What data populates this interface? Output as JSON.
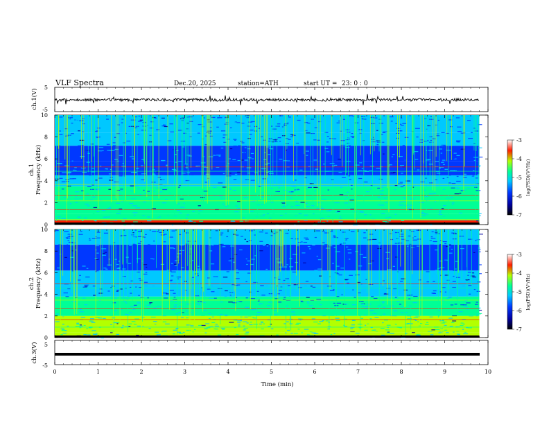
{
  "chart_data": {
    "type": "heatmap",
    "title": "VLF  Spectra",
    "header": {
      "date": "Dec.20, 2025",
      "station": "station=ATH",
      "start_label": "start  UT  =",
      "start_time": "23: 0  : 0"
    },
    "xlabel": "Time  (min)",
    "xlim": [
      0,
      10
    ],
    "x_ticks": [
      "0",
      "1",
      "2",
      "3",
      "4",
      "5",
      "6",
      "7",
      "8",
      "9",
      "10"
    ],
    "panels": [
      {
        "id": "ch1-waveform",
        "ylabel": "ch.1(V)",
        "ylim": [
          -5,
          5
        ],
        "y_ticks": [
          "5",
          "-5"
        ],
        "data_end_min": 9.8
      },
      {
        "id": "ch1-spectrogram",
        "channel_label": "ch.1",
        "ylabel": "Frequency  (kHz)",
        "ylim": [
          0,
          10
        ],
        "y_ticks": [
          "0",
          "2",
          "4",
          "6",
          "8",
          "10"
        ],
        "data_end_min": 9.8,
        "colorbar": {
          "label": "log(PSD)(V²/Hz)",
          "range": [
            -7,
            -3
          ],
          "ticks": [
            "-3",
            "-4",
            "-5",
            "-6",
            "-7"
          ]
        }
      },
      {
        "id": "ch2-spectrogram",
        "channel_label": "ch.2",
        "ylabel": "Frequency  (kHz)",
        "ylim": [
          0,
          10
        ],
        "y_ticks": [
          "0",
          "2",
          "4",
          "6",
          "8",
          "10"
        ],
        "data_end_min": 9.8,
        "colorbar": {
          "label": "log(PSD)(V²/Hz)",
          "range": [
            -7,
            -3
          ],
          "ticks": [
            "-3",
            "-4",
            "-5",
            "-6",
            "-7"
          ]
        }
      },
      {
        "id": "ch3-waveform",
        "ylabel": "ch.3(V)",
        "ylim": [
          -5,
          5
        ],
        "y_ticks": [
          "5",
          "-5"
        ],
        "data_end_min": 9.8
      }
    ],
    "colormap": [
      "#000000",
      "#0000a0",
      "#0038ff",
      "#00c8ff",
      "#00ff96",
      "#b4ff00",
      "#ff1e00",
      "#ffffff"
    ]
  }
}
